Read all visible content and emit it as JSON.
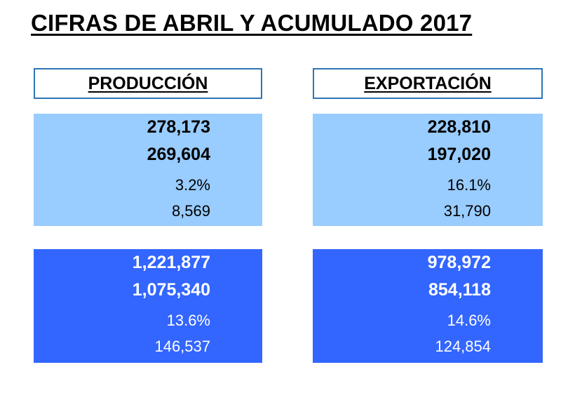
{
  "title": "CIFRAS DE ABRIL Y ACUMULADO 2017",
  "produccion": {
    "header": "PRODUCCIÓN",
    "abril": {
      "actual": "278,173",
      "anterior": "269,604",
      "variacion": "3.2%",
      "diferencia": "8,569"
    },
    "acumulado": {
      "actual": "1,221,877",
      "anterior": "1,075,340",
      "variacion": "13.6%",
      "diferencia": "146,537"
    }
  },
  "exportacion": {
    "header": "EXPORTACIÓN",
    "abril": {
      "actual": "228,810",
      "anterior": "197,020",
      "variacion": "16.1%",
      "diferencia": "31,790"
    },
    "acumulado": {
      "actual": "978,972",
      "anterior": "854,118",
      "variacion": "14.6%",
      "diferencia": "124,854"
    }
  },
  "colors": {
    "light_block": "#99ccff",
    "dark_block": "#3366ff",
    "header_border": "#2e75b6"
  }
}
